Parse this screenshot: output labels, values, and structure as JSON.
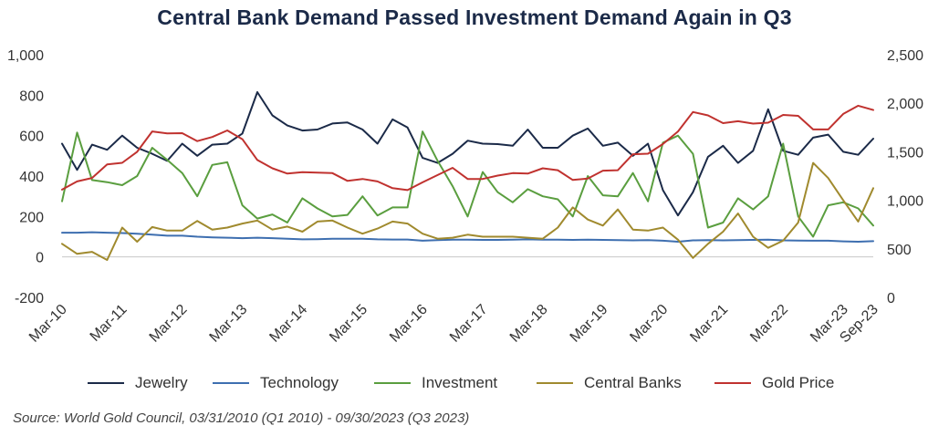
{
  "chart_data": {
    "type": "line",
    "title": "Central Bank Demand Passed Investment Demand Again in Q3",
    "source": "Source: World Gold Council, 03/31/2010 (Q1 2010) - 09/30/2023 (Q3 2023)",
    "x": [
      "Q1-10",
      "Q2-10",
      "Q3-10",
      "Q4-10",
      "Q1-11",
      "Q2-11",
      "Q3-11",
      "Q4-11",
      "Q1-12",
      "Q2-12",
      "Q3-12",
      "Q4-12",
      "Q1-13",
      "Q2-13",
      "Q3-13",
      "Q4-13",
      "Q1-14",
      "Q2-14",
      "Q3-14",
      "Q4-14",
      "Q1-15",
      "Q2-15",
      "Q3-15",
      "Q4-15",
      "Q1-16",
      "Q2-16",
      "Q3-16",
      "Q4-16",
      "Q1-17",
      "Q2-17",
      "Q3-17",
      "Q4-17",
      "Q1-18",
      "Q2-18",
      "Q3-18",
      "Q4-18",
      "Q1-19",
      "Q2-19",
      "Q3-19",
      "Q4-19",
      "Q1-20",
      "Q2-20",
      "Q3-20",
      "Q4-20",
      "Q1-21",
      "Q2-21",
      "Q3-21",
      "Q4-21",
      "Q1-22",
      "Q2-22",
      "Q3-22",
      "Q4-22",
      "Q1-23",
      "Q2-23",
      "Q3-23"
    ],
    "x_tick_labels": [
      {
        "label": "Mar-10",
        "index": 0
      },
      {
        "label": "Mar-11",
        "index": 4
      },
      {
        "label": "Mar-12",
        "index": 8
      },
      {
        "label": "Mar-13",
        "index": 12
      },
      {
        "label": "Mar-14",
        "index": 16
      },
      {
        "label": "Mar-15",
        "index": 20
      },
      {
        "label": "Mar-16",
        "index": 24
      },
      {
        "label": "Mar-17",
        "index": 28
      },
      {
        "label": "Mar-18",
        "index": 32
      },
      {
        "label": "Mar-19",
        "index": 36
      },
      {
        "label": "Mar-20",
        "index": 40
      },
      {
        "label": "Mar-21",
        "index": 44
      },
      {
        "label": "Mar-22",
        "index": 48
      },
      {
        "label": "Mar-23",
        "index": 52
      },
      {
        "label": "Sep-23",
        "index": 54
      }
    ],
    "y_left": {
      "min": -200,
      "max": 1000,
      "ticks": [
        1000,
        800,
        600,
        400,
        200,
        0,
        -200
      ],
      "tick_labels": [
        "1,000",
        "800",
        "600",
        "400",
        "200",
        "0",
        "-200"
      ]
    },
    "y_right": {
      "min": 0,
      "max": 2500,
      "ticks": [
        2500,
        2000,
        1500,
        1000,
        500,
        0
      ],
      "tick_labels": [
        "2,500",
        "2,000",
        "1,500",
        "1,000",
        "500",
        "0"
      ]
    },
    "series": [
      {
        "name": "Jewelry",
        "color": "#1b2a48",
        "axis": "left",
        "values": [
          560,
          430,
          555,
          530,
          600,
          540,
          510,
          475,
          560,
          500,
          555,
          560,
          610,
          815,
          700,
          650,
          625,
          630,
          660,
          665,
          630,
          560,
          680,
          640,
          490,
          465,
          510,
          575,
          560,
          558,
          550,
          630,
          540,
          540,
          600,
          635,
          550,
          565,
          500,
          560,
          330,
          205,
          320,
          495,
          550,
          465,
          525,
          730,
          525,
          505,
          590,
          605,
          520,
          505,
          585
        ]
      },
      {
        "name": "Technology",
        "color": "#3e6fb0",
        "axis": "left",
        "values": [
          120,
          120,
          122,
          120,
          118,
          115,
          110,
          105,
          105,
          100,
          97,
          95,
          93,
          95,
          93,
          90,
          87,
          88,
          90,
          90,
          90,
          87,
          86,
          86,
          80,
          83,
          85,
          85,
          84,
          84,
          85,
          87,
          85,
          85,
          84,
          85,
          84,
          83,
          82,
          83,
          80,
          75,
          82,
          83,
          82,
          83,
          84,
          85,
          82,
          81,
          80,
          80,
          77,
          75,
          78
        ]
      },
      {
        "name": "Investment",
        "color": "#5a9e3f",
        "axis": "left",
        "values": [
          275,
          615,
          380,
          370,
          355,
          400,
          540,
          480,
          415,
          300,
          455,
          468,
          255,
          190,
          210,
          170,
          290,
          240,
          200,
          208,
          300,
          205,
          245,
          245,
          620,
          475,
          350,
          200,
          420,
          320,
          270,
          335,
          300,
          285,
          200,
          400,
          305,
          300,
          415,
          275,
          565,
          600,
          510,
          145,
          170,
          290,
          235,
          300,
          560,
          200,
          100,
          255,
          270,
          240,
          155
        ]
      },
      {
        "name": "Central Banks",
        "color": "#a08a2e",
        "axis": "left",
        "values": [
          65,
          15,
          25,
          -15,
          145,
          75,
          148,
          130,
          130,
          178,
          135,
          145,
          165,
          180,
          135,
          150,
          125,
          175,
          180,
          145,
          115,
          140,
          175,
          165,
          115,
          90,
          95,
          110,
          100,
          100,
          100,
          95,
          90,
          145,
          245,
          185,
          155,
          235,
          135,
          130,
          145,
          85,
          -5,
          65,
          125,
          215,
          100,
          45,
          80,
          170,
          465,
          390,
          280,
          175,
          340
        ]
      },
      {
        "name": "Gold Price",
        "color": "#c0322f",
        "axis": "right",
        "values": [
          1110,
          1195,
          1230,
          1370,
          1386,
          1500,
          1710,
          1690,
          1692,
          1610,
          1652,
          1720,
          1630,
          1415,
          1330,
          1275,
          1290,
          1285,
          1280,
          1200,
          1220,
          1195,
          1125,
          1105,
          1185,
          1260,
          1335,
          1220,
          1220,
          1255,
          1280,
          1275,
          1330,
          1310,
          1210,
          1225,
          1305,
          1310,
          1475,
          1480,
          1580,
          1710,
          1910,
          1875,
          1795,
          1815,
          1790,
          1800,
          1880,
          1870,
          1730,
          1730,
          1890,
          1975,
          1930
        ]
      }
    ]
  }
}
